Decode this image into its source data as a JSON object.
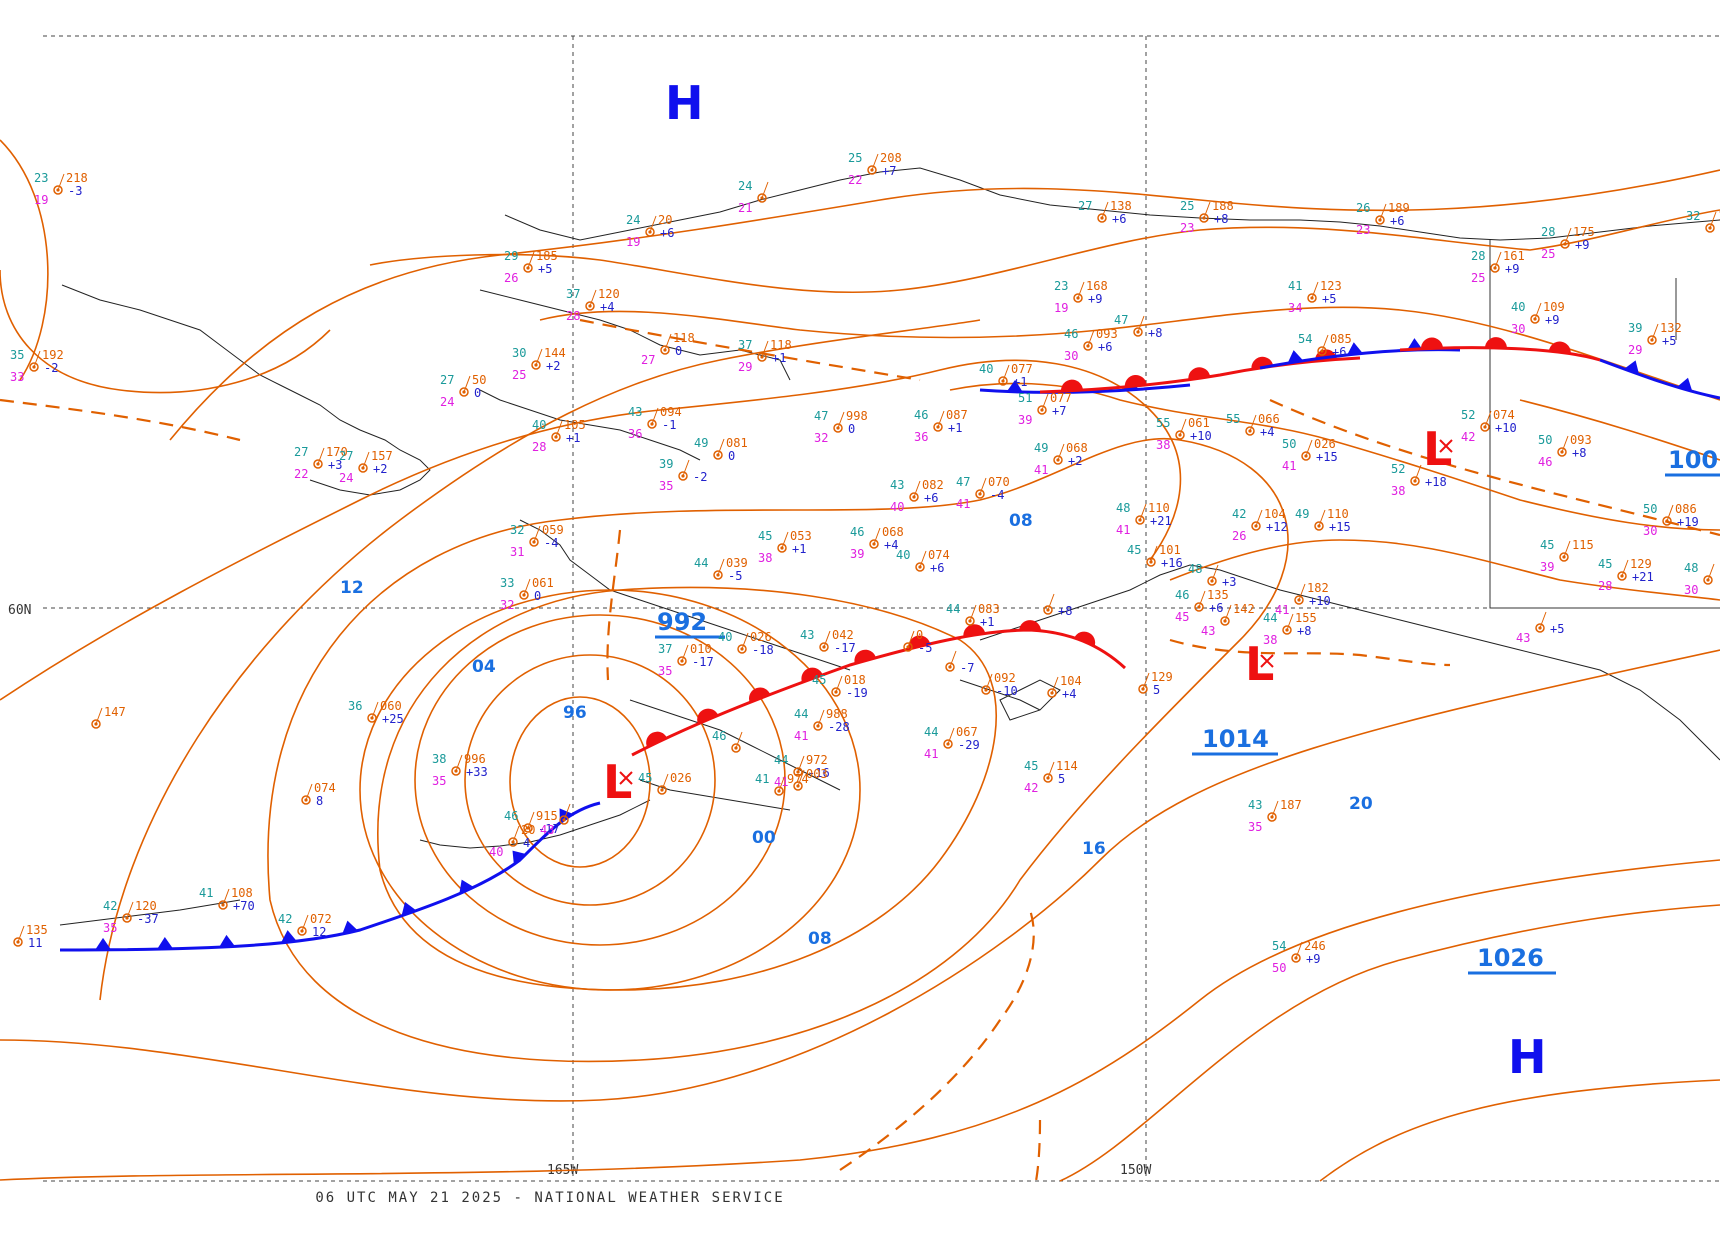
{
  "footer": {
    "valid_time": "06 UTC MAY 21 2025 - NATIONAL WEATHER SERVICE"
  },
  "colors": {
    "isobar": "#e06000",
    "isobar_label": "#1a6fe0",
    "high": "#1010ee",
    "low": "#ee1111",
    "cold_front": "#1010ee",
    "warm_front": "#ee1111",
    "station": "#e06000",
    "temp": "#1a9a9a",
    "dewpoint": "#e020e0",
    "tendency": "#2222cc"
  },
  "grid_labels": {
    "lat_60": "60N",
    "lon_165": "165W",
    "lon_150": "150W"
  },
  "centers": [
    {
      "type": "H",
      "kind": "high"
    },
    {
      "type": "L",
      "kind": "low"
    },
    {
      "type": "L",
      "kind": "low"
    },
    {
      "type": "L",
      "kind": "low"
    },
    {
      "type": "H",
      "kind": "high"
    }
  ],
  "center_pressures": [
    "992",
    "1014",
    "1026",
    "100"
  ],
  "isobar_labels": [
    "12",
    "04",
    "96",
    "00",
    "08",
    "08",
    "16",
    "20"
  ],
  "stations": [
    {
      "t": "23",
      "d": "19",
      "p": "218",
      "tend": "-3"
    },
    {
      "t": "25",
      "d": "22",
      "p": "208",
      "tend": "+7"
    },
    {
      "t": "24",
      "d": "21",
      "p": "",
      "tend": ""
    },
    {
      "t": "24",
      "d": "19",
      "p": "20",
      "tend": "+6"
    },
    {
      "t": "29",
      "d": "26",
      "p": "185",
      "tend": "+5"
    },
    {
      "t": "27",
      "d": "",
      "p": "138",
      "tend": "+6"
    },
    {
      "t": "25",
      "d": "23",
      "p": "188",
      "tend": "+8"
    },
    {
      "t": "26",
      "d": "23",
      "p": "189",
      "tend": "+6"
    },
    {
      "t": "28",
      "d": "25",
      "p": "175",
      "tend": "+9"
    },
    {
      "t": "28",
      "d": "25",
      "p": "161",
      "tend": "+9"
    },
    {
      "t": "32",
      "d": "",
      "p": "12",
      "tend": ""
    },
    {
      "t": "37",
      "d": "28",
      "p": "120",
      "tend": "+4"
    },
    {
      "t": "23",
      "d": "19",
      "p": "168",
      "tend": "+9"
    },
    {
      "t": "41",
      "d": "34",
      "p": "123",
      "tend": "+5"
    },
    {
      "t": "40",
      "d": "30",
      "p": "109",
      "tend": "+9"
    },
    {
      "t": "39",
      "d": "29",
      "p": "132",
      "tend": "+5"
    },
    {
      "t": "35",
      "d": "33",
      "p": "192",
      "tend": "-2"
    },
    {
      "t": "30",
      "d": "25",
      "p": "144",
      "tend": "+2"
    },
    {
      "t": "",
      "d": "27",
      "p": "118",
      "tend": "0"
    },
    {
      "t": "37",
      "d": "29",
      "p": "118",
      "tend": "+1"
    },
    {
      "t": "46",
      "d": "30",
      "p": "093",
      "tend": "+6"
    },
    {
      "t": "47",
      "d": "",
      "p": "",
      "tend": "+8"
    },
    {
      "t": "54",
      "d": "",
      "p": "085",
      "tend": "+6"
    },
    {
      "t": "27",
      "d": "24",
      "p": "50",
      "tend": "0"
    },
    {
      "t": "40",
      "d": "28",
      "p": "105",
      "tend": "+1"
    },
    {
      "t": "43",
      "d": "36",
      "p": "094",
      "tend": "-1"
    },
    {
      "t": "40",
      "d": "",
      "p": "077",
      "tend": "+1"
    },
    {
      "t": "51",
      "d": "39",
      "p": "077",
      "tend": "+7"
    },
    {
      "t": "47",
      "d": "32",
      "p": "998",
      "tend": "0"
    },
    {
      "t": "46",
      "d": "36",
      "p": "087",
      "tend": "+1"
    },
    {
      "t": "55",
      "d": "38",
      "p": "061",
      "tend": "+10"
    },
    {
      "t": "55",
      "d": "",
      "p": "066",
      "tend": "+4"
    },
    {
      "t": "52",
      "d": "42",
      "p": "074",
      "tend": "+10"
    },
    {
      "t": "50",
      "d": "46",
      "p": "093",
      "tend": "+8"
    },
    {
      "t": "27",
      "d": "22",
      "p": "170",
      "tend": "+3"
    },
    {
      "t": "27",
      "d": "24",
      "p": "157",
      "tend": "+2"
    },
    {
      "t": "49",
      "d": "",
      "p": "081",
      "tend": "0"
    },
    {
      "t": "39",
      "d": "35",
      "p": "",
      "tend": "-2"
    },
    {
      "t": "49",
      "d": "41",
      "p": "068",
      "tend": "+2"
    },
    {
      "t": "50",
      "d": "41",
      "p": "026",
      "tend": "+15"
    },
    {
      "t": "52",
      "d": "38",
      "p": "",
      "tend": "+18"
    },
    {
      "t": "43",
      "d": "40",
      "p": "082",
      "tend": "+6"
    },
    {
      "t": "47",
      "d": "41",
      "p": "070",
      "tend": "-4"
    },
    {
      "t": "50",
      "d": "30",
      "p": "086",
      "tend": "+19"
    },
    {
      "t": "32",
      "d": "31",
      "p": "059",
      "tend": "-4"
    },
    {
      "t": "45",
      "d": "38",
      "p": "053",
      "tend": "+1"
    },
    {
      "t": "46",
      "d": "39",
      "p": "068",
      "tend": "+4"
    },
    {
      "t": "48",
      "d": "41",
      "p": "110",
      "tend": "+21"
    },
    {
      "t": "42",
      "d": "26",
      "p": "104",
      "tend": "+12"
    },
    {
      "t": "49",
      "d": "",
      "p": "110",
      "tend": "+15"
    },
    {
      "t": "45",
      "d": "39",
      "p": "115",
      "tend": ""
    },
    {
      "t": "45",
      "d": "28",
      "p": "129",
      "tend": "+21"
    },
    {
      "t": "48",
      "d": "30",
      "p": "",
      "tend": ""
    },
    {
      "t": "33",
      "d": "32",
      "p": "061",
      "tend": "0"
    },
    {
      "t": "44",
      "d": "",
      "p": "039",
      "tend": "-5"
    },
    {
      "t": "40",
      "d": "",
      "p": "074",
      "tend": "+6"
    },
    {
      "t": "45",
      "d": "",
      "p": "101",
      "tend": "+16"
    },
    {
      "t": "",
      "d": "",
      "p": "",
      "tend": "+8"
    },
    {
      "t": "48",
      "d": "",
      "p": "",
      "tend": "+3"
    },
    {
      "t": "",
      "d": "41",
      "p": "182",
      "tend": "+10"
    },
    {
      "t": "44",
      "d": "",
      "p": "083",
      "tend": "+1"
    },
    {
      "t": "46",
      "d": "45",
      "p": "135",
      "tend": "+6"
    },
    {
      "t": "",
      "d": "43",
      "p": "142",
      "tend": ""
    },
    {
      "t": "44",
      "d": "38",
      "p": "155",
      "tend": "+8"
    },
    {
      "t": "",
      "d": "43",
      "p": "",
      "tend": "+5"
    },
    {
      "t": "37",
      "d": "35",
      "p": "010",
      "tend": "-17"
    },
    {
      "t": "40",
      "d": "",
      "p": "026",
      "tend": "-18"
    },
    {
      "t": "43",
      "d": "",
      "p": "042",
      "tend": "-17"
    },
    {
      "t": "",
      "d": "",
      "p": "0",
      "tend": "-5"
    },
    {
      "t": "",
      "d": "",
      "p": "",
      "tend": "-7"
    },
    {
      "t": "",
      "d": "",
      "p": "129",
      "tend": "5"
    },
    {
      "t": "36",
      "d": "",
      "p": "060",
      "tend": "+25"
    },
    {
      "t": "",
      "d": "",
      "p": "147",
      "tend": ""
    },
    {
      "t": "45",
      "d": "",
      "p": "018",
      "tend": "-19"
    },
    {
      "t": "",
      "d": "",
      "p": "092",
      "tend": "-10"
    },
    {
      "t": "",
      "d": "",
      "p": "104",
      "tend": "+4"
    },
    {
      "t": "44",
      "d": "41",
      "p": "988",
      "tend": "-28"
    },
    {
      "t": "44",
      "d": "41",
      "p": "067",
      "tend": "-29"
    },
    {
      "t": "38",
      "d": "35",
      "p": "996",
      "tend": "+33"
    },
    {
      "t": "",
      "d": "",
      "p": "074",
      "tend": "8"
    },
    {
      "t": "46",
      "d": "",
      "p": "",
      "tend": ""
    },
    {
      "t": "45",
      "d": "",
      "p": "026",
      "tend": ""
    },
    {
      "t": "44",
      "d": "41",
      "p": "972",
      "tend": "-16"
    },
    {
      "t": "",
      "d": "",
      "p": "003",
      "tend": ""
    },
    {
      "t": "45",
      "d": "42",
      "p": "114",
      "tend": "5"
    },
    {
      "t": "43",
      "d": "35",
      "p": "187",
      "tend": ""
    },
    {
      "t": "41",
      "d": "",
      "p": "974",
      "tend": ""
    },
    {
      "t": "46",
      "d": "",
      "p": "915",
      "tend": "-17"
    },
    {
      "t": "",
      "d": "43",
      "p": "",
      "tend": ""
    },
    {
      "t": "",
      "d": "40",
      "p": "20",
      "tend": "4"
    },
    {
      "t": "41",
      "d": "",
      "p": "108",
      "tend": "+70"
    },
    {
      "t": "42",
      "d": "35",
      "p": "120",
      "tend": "-37"
    },
    {
      "t": "42",
      "d": "",
      "p": "072",
      "tend": "12"
    },
    {
      "t": "",
      "d": "",
      "p": "135",
      "tend": "11"
    },
    {
      "t": "54",
      "d": "50",
      "p": "246",
      "tend": "+9"
    }
  ]
}
